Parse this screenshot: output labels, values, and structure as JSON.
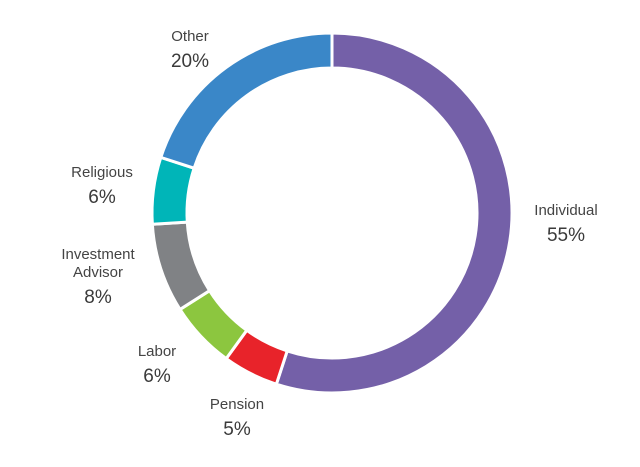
{
  "chart_data": {
    "type": "pie",
    "categories": [
      "Individual",
      "Pension",
      "Labor",
      "Investment Advisor",
      "Religious",
      "Other"
    ],
    "values": [
      55,
      5,
      6,
      8,
      6,
      20
    ],
    "value_labels": [
      "55%",
      "5%",
      "6%",
      "8%",
      "6%",
      "20%"
    ],
    "colors": [
      "#7460a8",
      "#e8232a",
      "#8cc63f",
      "#808285",
      "#00b5b8",
      "#3a87c8"
    ]
  }
}
